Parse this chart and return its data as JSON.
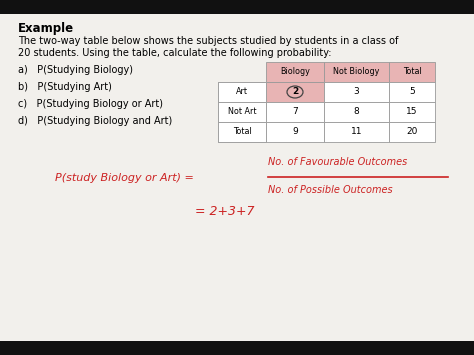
{
  "bg_color": "#f2f0ec",
  "black_bar_color": "#111111",
  "title": "Example",
  "body_line1": "The two-way table below shows the subjects studied by students in a class of",
  "body_line2": "20 students. Using the table, calculate the following probability:",
  "questions": [
    "a)   P(Studying Biology)",
    "b)   P(Studying Art)",
    "c)   P(Studying Biology or Art)",
    "d)   P(Studying Biology and Art)"
  ],
  "col_headers": [
    "Biology",
    "Not Biology",
    "Total"
  ],
  "row_labels": [
    "Art",
    "Not Art",
    "Total"
  ],
  "table_data": [
    [
      "2",
      "3",
      "5"
    ],
    [
      "7",
      "8",
      "15"
    ],
    [
      "9",
      "11",
      "20"
    ]
  ],
  "pink_color": "#e8b4b4",
  "highlight_color": "#e8b4b4",
  "hw_color": "#cc2222",
  "hw_left": "P(study Biology or Art) =",
  "hw_frac_num": "No. of Favourable Outcomes",
  "hw_frac_den": "No. of Possible Outcomes",
  "hw_result": "= 2+3+7",
  "fig_w": 4.74,
  "fig_h": 3.55,
  "dpi": 100
}
